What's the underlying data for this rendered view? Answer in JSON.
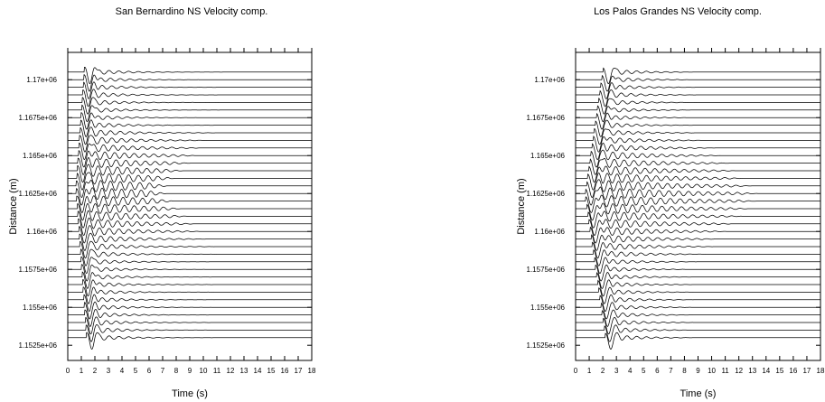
{
  "chart_data": [
    {
      "type": "line",
      "title": "San Bernardino NS Velocity comp.",
      "xlabel": "Time (s)",
      "ylabel": "Distance (m)",
      "xlim": [
        0,
        18
      ],
      "ylim": [
        1151500,
        1171800
      ],
      "x_ticks": [
        0,
        1,
        2,
        3,
        4,
        5,
        6,
        7,
        8,
        9,
        10,
        11,
        12,
        13,
        14,
        15,
        16,
        17,
        18
      ],
      "x_tick_labels": [
        "0",
        "1",
        "2",
        "3",
        "4",
        "5",
        "6",
        "7",
        "8",
        "9",
        "10",
        "11",
        "12",
        "13",
        "14",
        "15",
        "16",
        "17",
        "18"
      ],
      "y_ticks": [
        1152500,
        1155000,
        1157500,
        1160000,
        1162500,
        1165000,
        1167500,
        1170000
      ],
      "y_tick_labels": [
        "1.1525e+06",
        "1.155e+06",
        "1.1575e+06",
        "1.16e+06",
        "1.1625e+06",
        "1.165e+06",
        "1.1675e+06",
        "1.17e+06"
      ],
      "trace_distance_start": 1153000,
      "trace_distance_end": 1170500,
      "trace_count": 36,
      "focus_distance": 1162700,
      "direct_wave": {
        "min_arrival_s": 1.0,
        "slowness_s_per_m": 8e-05,
        "period_s": 0.9
      },
      "coda_end_near_source_s": 5.6,
      "coda_end_far_s": 10.5
    },
    {
      "type": "line",
      "title": "Los Palos Grandes NS Velocity comp.",
      "xlabel": "Time (s)",
      "ylabel": "Distance (m)",
      "xlim": [
        0,
        18
      ],
      "ylim": [
        1151500,
        1171800
      ],
      "x_ticks": [
        0,
        1,
        2,
        3,
        4,
        5,
        6,
        7,
        8,
        9,
        10,
        11,
        12,
        13,
        14,
        15,
        16,
        17,
        18
      ],
      "x_tick_labels": [
        "0",
        "1",
        "2",
        "3",
        "4",
        "5",
        "6",
        "7",
        "8",
        "9",
        "10",
        "11",
        "12",
        "13",
        "14",
        "15",
        "16",
        "17",
        "18"
      ],
      "y_ticks": [
        1152500,
        1155000,
        1157500,
        1160000,
        1162500,
        1165000,
        1167500,
        1170000
      ],
      "y_tick_labels": [
        "1.1525e+06",
        "1.155e+06",
        "1.1575e+06",
        "1.16e+06",
        "1.1625e+06",
        "1.165e+06",
        "1.1675e+06",
        "1.17e+06"
      ],
      "trace_distance_start": 1153000,
      "trace_distance_end": 1170500,
      "trace_count": 36,
      "focus_distance": 1162300,
      "direct_wave": {
        "min_arrival_s": 1.1,
        "slowness_s_per_m": 0.00016,
        "period_s": 1.0
      },
      "coda_end_near_source_s": 12.2,
      "coda_end_far_s": 7.5
    }
  ]
}
